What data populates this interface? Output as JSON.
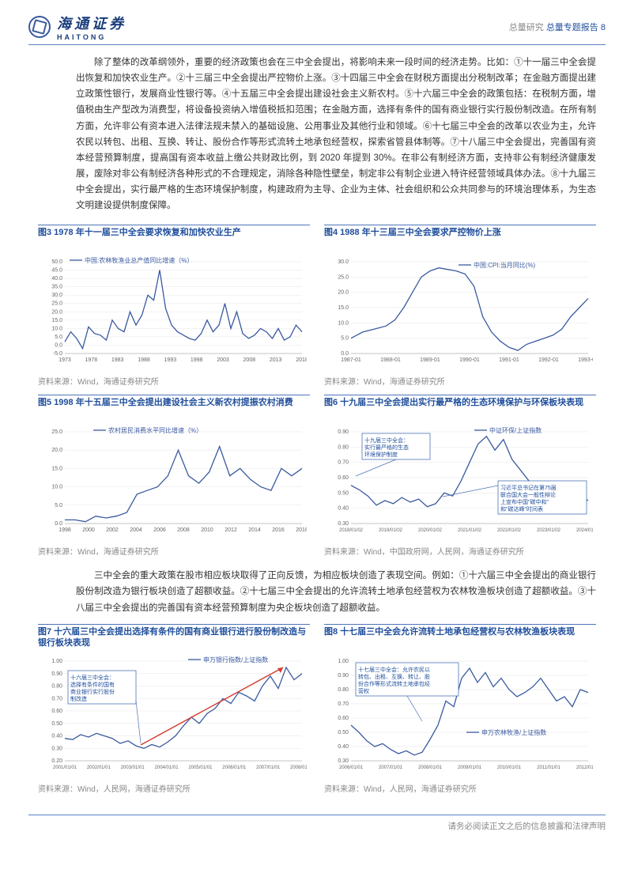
{
  "header": {
    "brand_cn": "海通证券",
    "brand_en": "HAITONG",
    "right_grey": "总量研究",
    "right_blue": "总量专题报告",
    "page_no": "8"
  },
  "para1": "除了整体的改革纲领外，重要的经济政策也会在三中全会提出，将影响未来一段时间的经济走势。比如：①十一届三中全会提出恢复和加快农业生产。②十三届三中全会提出严控物价上涨。③十四届三中全会在财税方面提出分税制改革；在金融方面提出建立政策性银行，发展商业性银行等。④十五届三中全会提出建设社会主义新农村。⑤十六届三中全会的政策包括：在税制方面，增值税由生产型改为消费型，将设备投资纳入增值税抵扣范围；在金融方面，选择有条件的国有商业银行实行股份制改造。在所有制方面，允许非公有资本进入法律法规未禁入的基础设施、公用事业及其他行业和领域。⑥十七届三中全会的改革以农业为主，允许农民以转包、出租、互换、转让、股份合作等形式流转土地承包经营权，探索省管县体制等。⑦十八届三中全会提出，完善国有资本经营预算制度，提高国有资本收益上缴公共财政比例，到 2020 年提到 30%。在非公有制经济方面，支持非公有制经济健康发展，废除对非公有制经济各种形式的不合理规定，消除各种隐性壁垒，制定非公有制企业进入特许经营领域具体办法。⑧十九届三中全会提出，实行最严格的生态环境保护制度，构建政府为主导、企业为主体、社会组织和公众共同参与的环境治理体系，为生态文明建设提供制度保障。",
  "para2": "三中全会的重大政策在股市相应板块取得了正向反馈，为相应板块创造了表现空间。例如：①十六届三中全会提出的商业银行股份制改造为银行板块创造了超额收益。②十七届三中全会提出的允许流转土地承包经营权为农林牧渔板块创造了超额收益。③十八届三中全会提出的完善国有资本经营预算制度为央企板块创造了超额收益。",
  "footer": "请务必阅读正文之后的信息披露和法律声明",
  "charts": {
    "c3": {
      "title": "图3  1978 年十一届三中全会要求恢复和加快农业生产",
      "legend": "中国:农林牧渔业总产值同比增速（%）",
      "src": "资料来源：Wind，海通证券研究所",
      "ylim": [
        -5,
        50
      ],
      "yticks": [
        -5,
        0,
        5,
        10,
        15,
        20,
        25,
        30,
        35,
        40,
        45,
        50
      ],
      "xticks": [
        "1973",
        "1978",
        "1983",
        "1988",
        "1993",
        "1998",
        "2003",
        "2008",
        "2013",
        "2018"
      ],
      "color": "#3a5aa0",
      "pts": [
        [
          0,
          2
        ],
        [
          4,
          8
        ],
        [
          8,
          4
        ],
        [
          12,
          -2
        ],
        [
          16,
          11
        ],
        [
          20,
          7
        ],
        [
          24,
          6
        ],
        [
          28,
          3
        ],
        [
          32,
          15
        ],
        [
          36,
          10
        ],
        [
          40,
          8
        ],
        [
          44,
          20
        ],
        [
          48,
          12
        ],
        [
          52,
          18
        ],
        [
          56,
          30
        ],
        [
          60,
          27
        ],
        [
          64,
          45
        ],
        [
          68,
          22
        ],
        [
          72,
          12
        ],
        [
          76,
          8
        ],
        [
          80,
          6
        ],
        [
          84,
          4
        ],
        [
          88,
          3
        ],
        [
          92,
          7
        ],
        [
          96,
          15
        ],
        [
          100,
          8
        ],
        [
          104,
          12
        ],
        [
          108,
          25
        ],
        [
          112,
          10
        ],
        [
          116,
          20
        ],
        [
          120,
          7
        ],
        [
          124,
          4
        ],
        [
          128,
          6
        ],
        [
          132,
          10
        ],
        [
          136,
          8
        ],
        [
          140,
          4
        ],
        [
          144,
          10
        ],
        [
          148,
          3
        ],
        [
          152,
          5
        ],
        [
          156,
          12
        ],
        [
          160,
          8
        ]
      ]
    },
    "c4": {
      "title": "图4  1988 年十三届三中全会要求严控物价上涨",
      "legend": "中国:CPI:当月同比(%)",
      "src": "资料来源：Wind，海通证券研究所",
      "ylim": [
        0,
        30
      ],
      "yticks": [
        0,
        5,
        10,
        15,
        20,
        25,
        30
      ],
      "xticks": [
        "1987-01",
        "1988-01",
        "1989-01",
        "1990-01",
        "1991-01",
        "1992-01",
        "1993-01"
      ],
      "color": "#3a5aa0",
      "pts": [
        [
          0,
          5
        ],
        [
          8,
          7
        ],
        [
          16,
          8
        ],
        [
          24,
          9
        ],
        [
          30,
          11
        ],
        [
          36,
          15
        ],
        [
          42,
          20
        ],
        [
          48,
          25
        ],
        [
          54,
          27
        ],
        [
          60,
          28
        ],
        [
          66,
          27.5
        ],
        [
          72,
          27
        ],
        [
          78,
          26
        ],
        [
          84,
          22
        ],
        [
          90,
          12
        ],
        [
          96,
          7
        ],
        [
          102,
          4
        ],
        [
          108,
          2
        ],
        [
          114,
          1
        ],
        [
          120,
          3
        ],
        [
          126,
          4
        ],
        [
          132,
          5
        ],
        [
          138,
          6
        ],
        [
          144,
          8
        ],
        [
          150,
          12
        ],
        [
          156,
          15
        ],
        [
          162,
          18
        ]
      ]
    },
    "c5": {
      "title": "图5  1998 年十五届三中全会提出建设社会主义新农村提振农村消费",
      "legend": "农村居民消费水平同比增速（%）",
      "src": "资料来源：Wind，海通证券研究所",
      "ylim": [
        0,
        25
      ],
      "yticks": [
        0,
        5,
        10,
        15,
        20,
        25
      ],
      "xticks": [
        "1998",
        "2000",
        "2002",
        "2004",
        "2006",
        "2008",
        "2010",
        "2012",
        "2014",
        "2016",
        "2018"
      ],
      "color": "#3a5aa0",
      "pts": [
        [
          0,
          1
        ],
        [
          8,
          1
        ],
        [
          16,
          0.5
        ],
        [
          24,
          2
        ],
        [
          32,
          1.5
        ],
        [
          40,
          2
        ],
        [
          48,
          3
        ],
        [
          56,
          8
        ],
        [
          64,
          9
        ],
        [
          72,
          10
        ],
        [
          80,
          13
        ],
        [
          88,
          20
        ],
        [
          96,
          13
        ],
        [
          104,
          11
        ],
        [
          112,
          14
        ],
        [
          120,
          21
        ],
        [
          128,
          13
        ],
        [
          136,
          15
        ],
        [
          144,
          12
        ],
        [
          152,
          10
        ],
        [
          160,
          9
        ],
        [
          168,
          15
        ],
        [
          176,
          13
        ],
        [
          184,
          15
        ]
      ]
    },
    "c6": {
      "title": "图6  十九届三中全会提出实行最严格的生态环境保护与环保板块表现",
      "legend": "中证环保/上证指数",
      "src": "资料来源：Wind，中国政府网，人民网，海通证券研究所",
      "ylim": [
        0.3,
        0.9
      ],
      "yticks": [
        "0.30",
        "0.40",
        "0.50",
        "0.60",
        "0.70",
        "0.80",
        "0.90"
      ],
      "xticks": [
        "2018/01/02",
        "2019/01/02",
        "2020/01/02",
        "2021/01/02",
        "2022/01/02",
        "2023/01/02",
        "2024/01/02"
      ],
      "color": "#3a5aa0",
      "callout1": "十九届三中全会：\n实行最严格的生态\n环境保护制度",
      "callout2": "习近平总书记在第75届\n联合国大会一般性辩论\n上宣布中国\"碳中和\"\n和\"碳达峰\"时间表",
      "pts": [
        [
          0,
          0.55
        ],
        [
          6,
          0.52
        ],
        [
          12,
          0.48
        ],
        [
          18,
          0.42
        ],
        [
          24,
          0.45
        ],
        [
          30,
          0.43
        ],
        [
          36,
          0.47
        ],
        [
          42,
          0.44
        ],
        [
          48,
          0.46
        ],
        [
          54,
          0.41
        ],
        [
          60,
          0.43
        ],
        [
          66,
          0.5
        ],
        [
          72,
          0.48
        ],
        [
          78,
          0.58
        ],
        [
          84,
          0.7
        ],
        [
          90,
          0.82
        ],
        [
          96,
          0.87
        ],
        [
          102,
          0.78
        ],
        [
          108,
          0.85
        ],
        [
          114,
          0.72
        ],
        [
          120,
          0.65
        ],
        [
          126,
          0.58
        ],
        [
          132,
          0.52
        ],
        [
          138,
          0.55
        ],
        [
          144,
          0.5
        ],
        [
          150,
          0.47
        ],
        [
          156,
          0.45
        ],
        [
          162,
          0.48
        ],
        [
          168,
          0.45
        ]
      ]
    },
    "c7": {
      "title": "图7  十六届三中全会提出选择有条件的国有商业银行进行股份制改造与银行板块表现",
      "legend": "申万银行指数/上证指数",
      "src": "资料来源：Wind，人民网，海通证券研究所",
      "ylim": [
        0.2,
        1.0
      ],
      "yticks": [
        "0.20",
        "0.30",
        "0.40",
        "0.50",
        "0.60",
        "0.70",
        "0.80",
        "0.90",
        "1.00"
      ],
      "xticks": [
        "2001/01/01",
        "2002/01/01",
        "2003/01/01",
        "2004/01/01",
        "2005/01/01",
        "2006/01/01",
        "2007/01/01",
        "2008/01/01"
      ],
      "color": "#3a5aa0",
      "arrow_color": "#d43a2f",
      "callout": "十六届三中全会：\n选择有条件的国有\n商业银行实行股份\n制改造",
      "pts": [
        [
          0,
          0.38
        ],
        [
          6,
          0.37
        ],
        [
          12,
          0.41
        ],
        [
          18,
          0.39
        ],
        [
          24,
          0.42
        ],
        [
          30,
          0.4
        ],
        [
          36,
          0.38
        ],
        [
          42,
          0.34
        ],
        [
          48,
          0.36
        ],
        [
          54,
          0.32
        ],
        [
          60,
          0.3
        ],
        [
          66,
          0.33
        ],
        [
          72,
          0.31
        ],
        [
          78,
          0.35
        ],
        [
          84,
          0.4
        ],
        [
          90,
          0.48
        ],
        [
          96,
          0.55
        ],
        [
          102,
          0.5
        ],
        [
          108,
          0.58
        ],
        [
          114,
          0.62
        ],
        [
          120,
          0.7
        ],
        [
          126,
          0.66
        ],
        [
          132,
          0.75
        ],
        [
          138,
          0.72
        ],
        [
          144,
          0.68
        ],
        [
          150,
          0.8
        ],
        [
          156,
          0.88
        ],
        [
          162,
          0.78
        ],
        [
          168,
          0.95
        ],
        [
          174,
          0.85
        ],
        [
          180,
          0.9
        ]
      ]
    },
    "c8": {
      "title": "图8  十七届三中全会允许流转土地承包经营权与农林牧渔板块表现",
      "legend": "申万农林牧渔/上证指数",
      "src": "资料来源：Wind，人民网，海通证券研究所",
      "ylim": [
        0.3,
        1.0
      ],
      "yticks": [
        "0.30",
        "0.40",
        "0.50",
        "0.60",
        "0.70",
        "0.80",
        "0.90",
        "1.00"
      ],
      "xticks": [
        "2006/01/01",
        "2007/01/01",
        "2008/01/01",
        "2009/01/01",
        "2010/01/01",
        "2011/01/01",
        "2012/01/01"
      ],
      "color": "#3a5aa0",
      "callout": "十七届三中全会：允许农民以\n转包、出租、互换、转让、股\n份合作等形式流转土地承包经\n营权",
      "pts": [
        [
          0,
          0.55
        ],
        [
          6,
          0.5
        ],
        [
          12,
          0.44
        ],
        [
          18,
          0.4
        ],
        [
          24,
          0.42
        ],
        [
          30,
          0.38
        ],
        [
          36,
          0.35
        ],
        [
          42,
          0.37
        ],
        [
          48,
          0.34
        ],
        [
          54,
          0.36
        ],
        [
          60,
          0.45
        ],
        [
          66,
          0.55
        ],
        [
          72,
          0.72
        ],
        [
          78,
          0.68
        ],
        [
          84,
          0.88
        ],
        [
          90,
          0.95
        ],
        [
          96,
          0.85
        ],
        [
          102,
          0.92
        ],
        [
          108,
          0.82
        ],
        [
          114,
          0.88
        ],
        [
          120,
          0.8
        ],
        [
          126,
          0.75
        ],
        [
          132,
          0.78
        ],
        [
          138,
          0.82
        ],
        [
          144,
          0.88
        ],
        [
          150,
          0.8
        ],
        [
          156,
          0.72
        ],
        [
          162,
          0.75
        ],
        [
          168,
          0.68
        ],
        [
          174,
          0.8
        ],
        [
          180,
          0.78
        ]
      ]
    }
  }
}
